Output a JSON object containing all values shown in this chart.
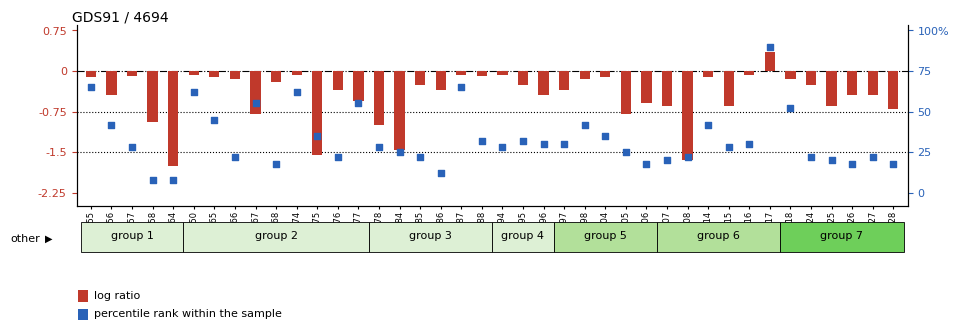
{
  "title": "GDS91 / 4694",
  "samples": [
    "GSM1555",
    "GSM1556",
    "GSM1557",
    "GSM1558",
    "GSM1564",
    "GSM1550",
    "GSM1565",
    "GSM1566",
    "GSM1567",
    "GSM1568",
    "GSM1574",
    "GSM1575",
    "GSM1576",
    "GSM1577",
    "GSM1578",
    "GSM1584",
    "GSM1585",
    "GSM1586",
    "GSM1587",
    "GSM1588",
    "GSM1594",
    "GSM1595",
    "GSM1596",
    "GSM1597",
    "GSM1598",
    "GSM1604",
    "GSM1605",
    "GSM1606",
    "GSM1607",
    "GSM1608",
    "GSM1614",
    "GSM1615",
    "GSM1616",
    "GSM1617",
    "GSM1618",
    "GSM1624",
    "GSM1625",
    "GSM1626",
    "GSM1627",
    "GSM1628"
  ],
  "log_ratio": [
    -0.12,
    -0.45,
    -0.1,
    -0.95,
    -1.75,
    -0.08,
    -0.12,
    -0.15,
    -0.8,
    -0.2,
    -0.08,
    -1.55,
    -0.35,
    -0.55,
    -1.0,
    -1.45,
    -0.25,
    -0.35,
    -0.08,
    -0.1,
    -0.08,
    -0.25,
    -0.45,
    -0.35,
    -0.15,
    -0.12,
    -0.8,
    -0.6,
    -0.65,
    -1.65,
    -0.12,
    -0.65,
    -0.08,
    0.35,
    -0.15,
    -0.25,
    -0.65,
    -0.45,
    -0.45,
    -0.7
  ],
  "percentile_rank": [
    65,
    42,
    28,
    8,
    8,
    62,
    45,
    22,
    55,
    18,
    62,
    35,
    22,
    55,
    28,
    25,
    22,
    12,
    65,
    32,
    28,
    32,
    30,
    30,
    42,
    35,
    25,
    18,
    20,
    22,
    42,
    28,
    30,
    90,
    52,
    22,
    20,
    18,
    22,
    18
  ],
  "groups": [
    {
      "name": "group 1",
      "start": 0,
      "end": 5
    },
    {
      "name": "group 2",
      "start": 5,
      "end": 14
    },
    {
      "name": "group 3",
      "start": 14,
      "end": 20
    },
    {
      "name": "group 4",
      "start": 20,
      "end": 23
    },
    {
      "name": "group 5",
      "start": 23,
      "end": 28
    },
    {
      "name": "group 6",
      "start": 28,
      "end": 34
    },
    {
      "name": "group 7",
      "start": 34,
      "end": 40
    }
  ],
  "group_colors": {
    "group 1": "#ddf0d5",
    "group 2": "#ddf0d5",
    "group 3": "#ddf0d5",
    "group 4": "#ddf0d5",
    "group 5": "#b2e09a",
    "group 6": "#b2e09a",
    "group 7": "#6ecf5a"
  },
  "ylim_left": [
    -2.5,
    0.85
  ],
  "ylim_right": [
    -2.5,
    0.85
  ],
  "yticks_left": [
    0.75,
    0.0,
    -0.75,
    -1.5,
    -2.25
  ],
  "yticks_right_vals": [
    100,
    75,
    50,
    25,
    0
  ],
  "bar_color": "#c0392b",
  "dot_color": "#2962b8",
  "legend_items": [
    "log ratio",
    "percentile rank within the sample"
  ],
  "legend_colors": [
    "#c0392b",
    "#2962b8"
  ]
}
